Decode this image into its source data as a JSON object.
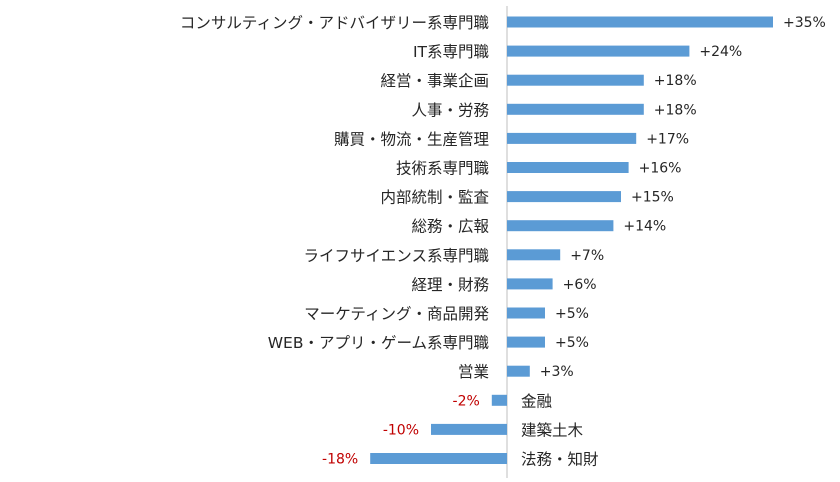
{
  "chart_data": {
    "type": "bar",
    "orientation": "horizontal",
    "categories": [
      "コンサルティング・アドバイザリー系専門職",
      "IT系専門職",
      "経営・事業企画",
      "人事・労務",
      "購買・物流・生産管理",
      "技術系専門職",
      "内部統制・監査",
      "総務・広報",
      "ライフサイエンス系専門職",
      "経理・財務",
      "マーケティング・商品開発",
      "WEB・アプリ・ゲーム系専門職",
      "営業",
      "金融",
      "建築土木",
      "法務・知財"
    ],
    "values": [
      35,
      24,
      18,
      18,
      17,
      16,
      15,
      14,
      7,
      6,
      5,
      5,
      3,
      -2,
      -10,
      -18
    ],
    "data_labels": [
      "+35%",
      "+24%",
      "+18%",
      "+18%",
      "+17%",
      "+16%",
      "+15%",
      "+14%",
      "+7%",
      "+6%",
      "+5%",
      "+5%",
      "+3%",
      "-2%",
      "-10%",
      "-18%"
    ],
    "title": "",
    "xlabel": "",
    "ylabel": "",
    "grid": false,
    "legend": "none",
    "colors": {
      "bar": "#5b9bd5",
      "positive_label": "#262626",
      "negative_label": "#c00000",
      "axis": "#bfbfbf",
      "category_label": "#262626"
    }
  }
}
